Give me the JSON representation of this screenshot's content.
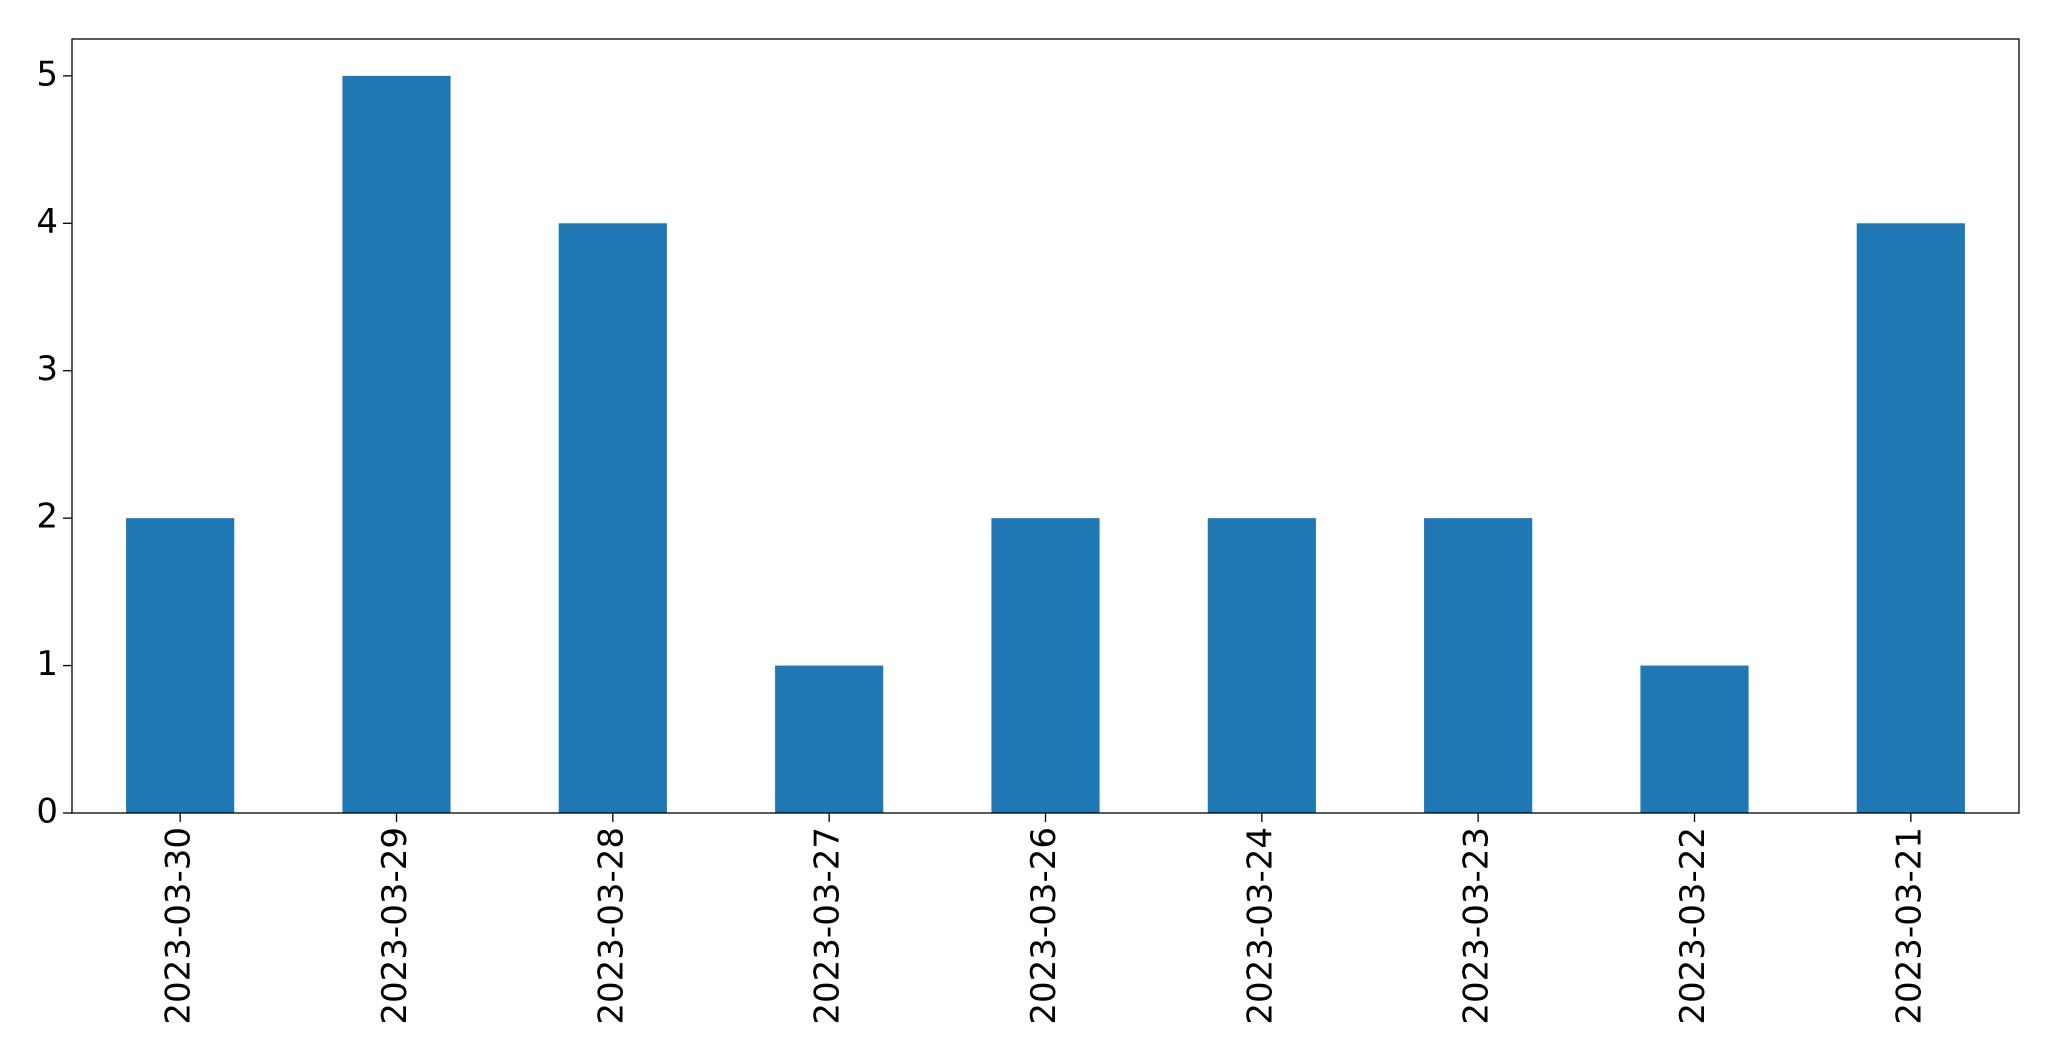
{
  "chart_data": {
    "type": "bar",
    "categories": [
      "2023-03-30",
      "2023-03-29",
      "2023-03-28",
      "2023-03-27",
      "2023-03-26",
      "2023-03-24",
      "2023-03-23",
      "2023-03-22",
      "2023-03-21"
    ],
    "values": [
      2,
      5,
      4,
      1,
      2,
      2,
      2,
      1,
      4
    ],
    "color": "#1f77b4",
    "ylim": [
      0,
      5.25
    ],
    "yticks": [
      0,
      1,
      2,
      3,
      4,
      5
    ],
    "grid": false
  }
}
